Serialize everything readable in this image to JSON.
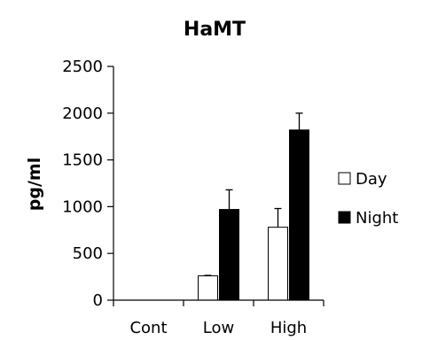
{
  "chart_data": {
    "type": "bar",
    "title": "HaMT",
    "xlabel": "",
    "ylabel": "pg/ml",
    "categories": [
      "Cont",
      "Low",
      "High"
    ],
    "ylim": [
      0,
      2500
    ],
    "yticks": [
      0,
      500,
      1000,
      1500,
      2000,
      2500
    ],
    "ytick_labels": [
      "0",
      "500",
      "1000",
      "1500",
      "2000",
      "2500"
    ],
    "series": [
      {
        "name": "Day",
        "values": [
          0,
          260,
          780
        ],
        "errors": [
          0,
          5,
          200
        ],
        "color": "#ffffff"
      },
      {
        "name": "Night",
        "values": [
          0,
          970,
          1820
        ],
        "errors": [
          0,
          210,
          180
        ],
        "color": "#000000"
      }
    ],
    "legend_position": "right",
    "grid": false
  }
}
